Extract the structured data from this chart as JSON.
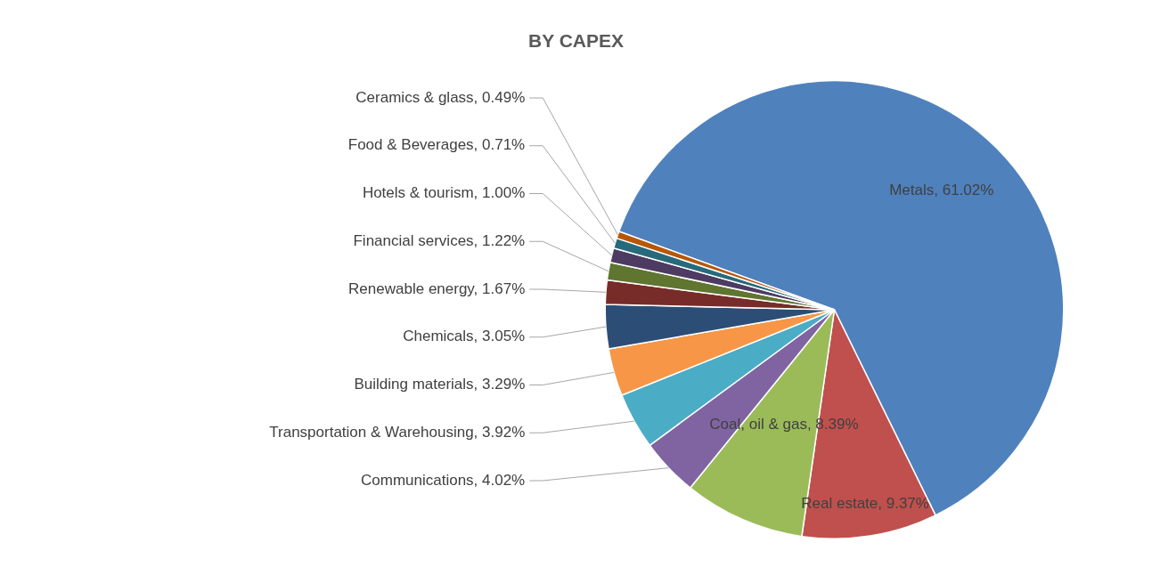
{
  "chart_data": {
    "type": "pie",
    "title": "BY CAPEX",
    "categories": [
      "Metals",
      "Real estate",
      "Coal, oil & gas",
      "Communications",
      "Transportation & Warehousing",
      "Building materials",
      "Chemicals",
      "Renewable energy",
      "Financial services",
      "Hotels & tourism",
      "Food & Beverages",
      "Ceramics & glass"
    ],
    "values": [
      61.02,
      9.37,
      8.39,
      4.02,
      3.92,
      3.29,
      3.05,
      1.67,
      1.22,
      1.0,
      0.71,
      0.49
    ],
    "value_labels": [
      "61.02%",
      "9.37%",
      "8.39%",
      "4.02%",
      "3.92%",
      "3.29%",
      "3.05%",
      "1.67%",
      "1.22%",
      "1.00%",
      "0.71%",
      "0.49%"
    ],
    "colors": [
      "#4f81bd",
      "#c0504d",
      "#9bbb59",
      "#8064a2",
      "#4bacc6",
      "#f79646",
      "#2c4d75",
      "#772c2a",
      "#5f7530",
      "#4d3b62",
      "#276a7c",
      "#b65708"
    ],
    "legend": false
  }
}
